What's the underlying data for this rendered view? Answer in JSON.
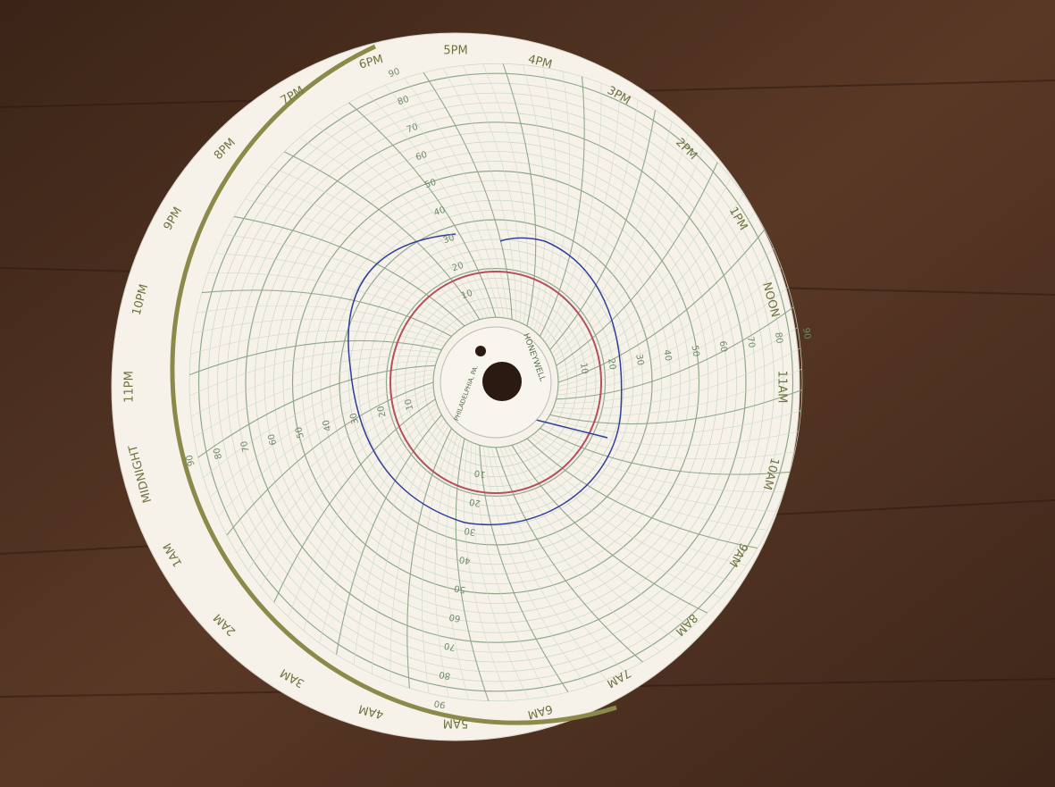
{
  "chart_paper": {
    "hours": [
      "5PM",
      "4PM",
      "3PM",
      "2PM",
      "1PM",
      "NOON",
      "11AM",
      "10AM",
      "9AM",
      "8AM",
      "7AM",
      "6AM",
      "5AM",
      "4AM",
      "3AM",
      "2AM",
      "1AM",
      "MIDNIGHT",
      "11PM",
      "10PM",
      "9PM",
      "8PM",
      "7PM",
      "6PM"
    ],
    "scale": [
      10,
      20,
      30,
      40,
      50,
      60,
      70,
      80,
      90
    ],
    "maker": "HONEYWELL",
    "place": "PHILADELPHIA, PA."
  }
}
